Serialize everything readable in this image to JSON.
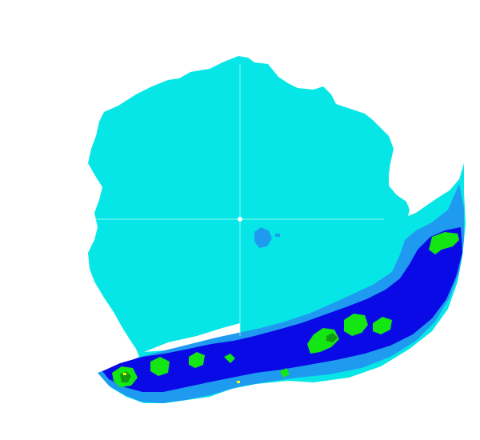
{
  "radar_image": {
    "background_color": "#ffffff",
    "legend_present": false,
    "palette": {
      "light_cyan": "#07e6e6",
      "mid_blue": "#1e9bf0",
      "deep_blue": "#0a0ae6",
      "green": "#14e614",
      "dark_green": "#0f9b0f",
      "yellow": "#ffff00",
      "center_marker": "#ffffff"
    },
    "features": [
      {
        "name": "coverage-area",
        "color": "light_cyan"
      },
      {
        "name": "precipitation-band-southeast",
        "color": "mid_blue"
      },
      {
        "name": "precipitation-band-core",
        "color": "deep_blue"
      },
      {
        "name": "heavy-precipitation-cells",
        "color": "green"
      },
      {
        "name": "very-heavy-precipitation-cells",
        "color": "dark_green"
      },
      {
        "name": "intense-precipitation-cells",
        "color": "yellow"
      }
    ]
  }
}
